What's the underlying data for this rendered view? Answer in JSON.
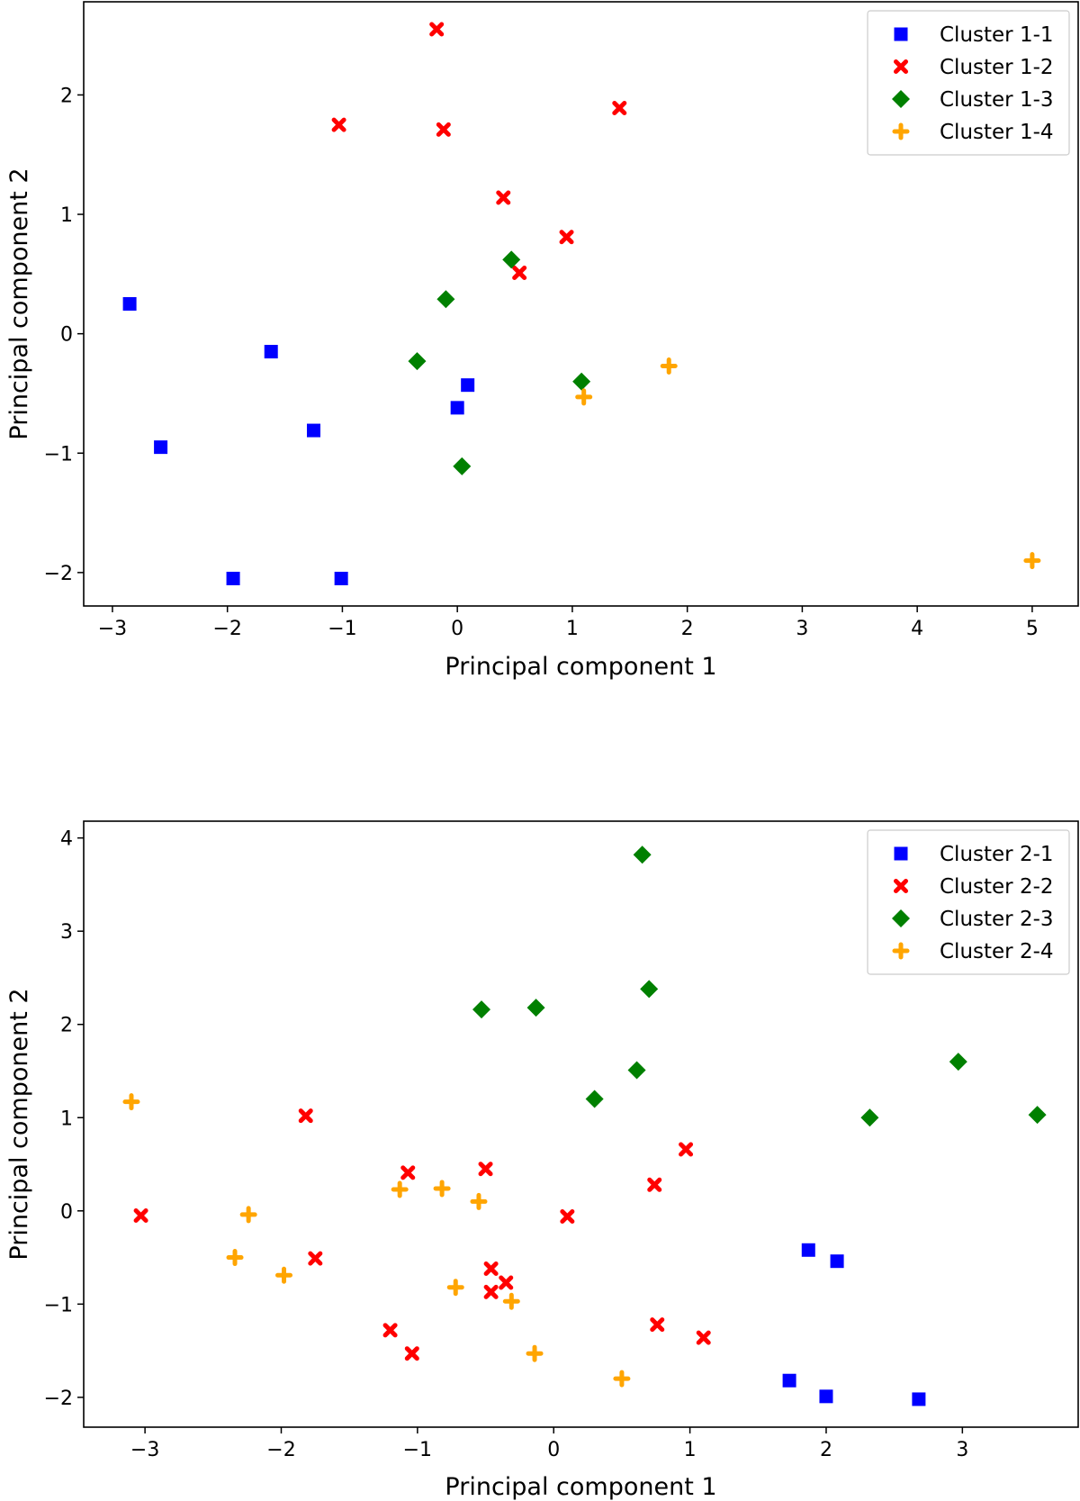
{
  "colors": {
    "blue": "#0000ff",
    "red": "#ff0000",
    "green": "#008000",
    "orange": "#ffa500"
  },
  "chart_data": [
    {
      "type": "scatter",
      "title": "",
      "xlabel": "Principal component 1",
      "ylabel": "Principal component 2",
      "xlim": [
        -3.25,
        5.4
      ],
      "ylim": [
        -2.28,
        2.78
      ],
      "xticks": [
        -3,
        -2,
        -1,
        0,
        1,
        2,
        3,
        4,
        5
      ],
      "yticks": [
        -2,
        -1,
        0,
        1,
        2
      ],
      "grid": false,
      "legend_position": "top-right",
      "series": [
        {
          "name": "Cluster 1-1",
          "marker": "square",
          "color": "#0000ff",
          "points": [
            [
              -2.85,
              0.25
            ],
            [
              -1.62,
              -0.15
            ],
            [
              -2.58,
              -0.95
            ],
            [
              -1.25,
              -0.81
            ],
            [
              0.09,
              -0.43
            ],
            [
              0.0,
              -0.62
            ],
            [
              -1.95,
              -2.05
            ],
            [
              -1.01,
              -2.05
            ]
          ]
        },
        {
          "name": "Cluster 1-2",
          "marker": "x",
          "color": "#ff0000",
          "points": [
            [
              -0.18,
              2.55
            ],
            [
              -1.03,
              1.75
            ],
            [
              -0.12,
              1.71
            ],
            [
              1.41,
              1.89
            ],
            [
              0.4,
              1.14
            ],
            [
              0.95,
              0.81
            ],
            [
              0.54,
              0.51
            ]
          ]
        },
        {
          "name": "Cluster 1-3",
          "marker": "diamond",
          "color": "#008000",
          "points": [
            [
              0.47,
              0.62
            ],
            [
              -0.1,
              0.29
            ],
            [
              -0.35,
              -0.23
            ],
            [
              1.08,
              -0.4
            ],
            [
              0.04,
              -1.11
            ]
          ]
        },
        {
          "name": "Cluster 1-4",
          "marker": "plus",
          "color": "#ffa500",
          "points": [
            [
              1.84,
              -0.27
            ],
            [
              1.1,
              -0.53
            ],
            [
              5.0,
              -1.9
            ]
          ]
        }
      ]
    },
    {
      "type": "scatter",
      "title": "",
      "xlabel": "Principal component 1",
      "ylabel": "Principal component 2",
      "xlim": [
        -3.45,
        3.85
      ],
      "ylim": [
        -2.32,
        4.18
      ],
      "xticks": [
        -3,
        -2,
        -1,
        0,
        1,
        2,
        3
      ],
      "yticks": [
        -2,
        -1,
        0,
        1,
        2,
        3,
        4
      ],
      "grid": false,
      "legend_position": "top-right",
      "series": [
        {
          "name": "Cluster 2-1",
          "marker": "square",
          "color": "#0000ff",
          "points": [
            [
              1.87,
              -0.42
            ],
            [
              2.08,
              -0.54
            ],
            [
              1.73,
              -1.82
            ],
            [
              2.0,
              -1.99
            ],
            [
              2.68,
              -2.02
            ]
          ]
        },
        {
          "name": "Cluster 2-2",
          "marker": "x",
          "color": "#ff0000",
          "points": [
            [
              -1.82,
              1.02
            ],
            [
              -3.03,
              -0.05
            ],
            [
              -1.07,
              0.41
            ],
            [
              -0.5,
              0.45
            ],
            [
              0.97,
              0.66
            ],
            [
              0.74,
              0.28
            ],
            [
              0.1,
              -0.06
            ],
            [
              -1.75,
              -0.51
            ],
            [
              -0.46,
              -0.62
            ],
            [
              -0.35,
              -0.77
            ],
            [
              -0.46,
              -0.87
            ],
            [
              -1.2,
              -1.28
            ],
            [
              -1.04,
              -1.53
            ],
            [
              0.76,
              -1.22
            ],
            [
              1.1,
              -1.36
            ]
          ]
        },
        {
          "name": "Cluster 2-3",
          "marker": "diamond",
          "color": "#008000",
          "points": [
            [
              0.65,
              3.82
            ],
            [
              0.7,
              2.38
            ],
            [
              -0.53,
              2.16
            ],
            [
              -0.13,
              2.18
            ],
            [
              0.61,
              1.51
            ],
            [
              0.3,
              1.2
            ],
            [
              2.97,
              1.6
            ],
            [
              2.32,
              1.0
            ],
            [
              3.55,
              1.03
            ]
          ]
        },
        {
          "name": "Cluster 2-4",
          "marker": "plus",
          "color": "#ffa500",
          "points": [
            [
              -3.1,
              1.17
            ],
            [
              -1.13,
              0.23
            ],
            [
              -0.82,
              0.24
            ],
            [
              -0.55,
              0.1
            ],
            [
              -2.24,
              -0.04
            ],
            [
              -2.34,
              -0.5
            ],
            [
              -1.98,
              -0.69
            ],
            [
              -0.72,
              -0.82
            ],
            [
              -0.31,
              -0.97
            ],
            [
              -0.14,
              -1.53
            ],
            [
              0.5,
              -1.8
            ]
          ]
        }
      ]
    }
  ]
}
